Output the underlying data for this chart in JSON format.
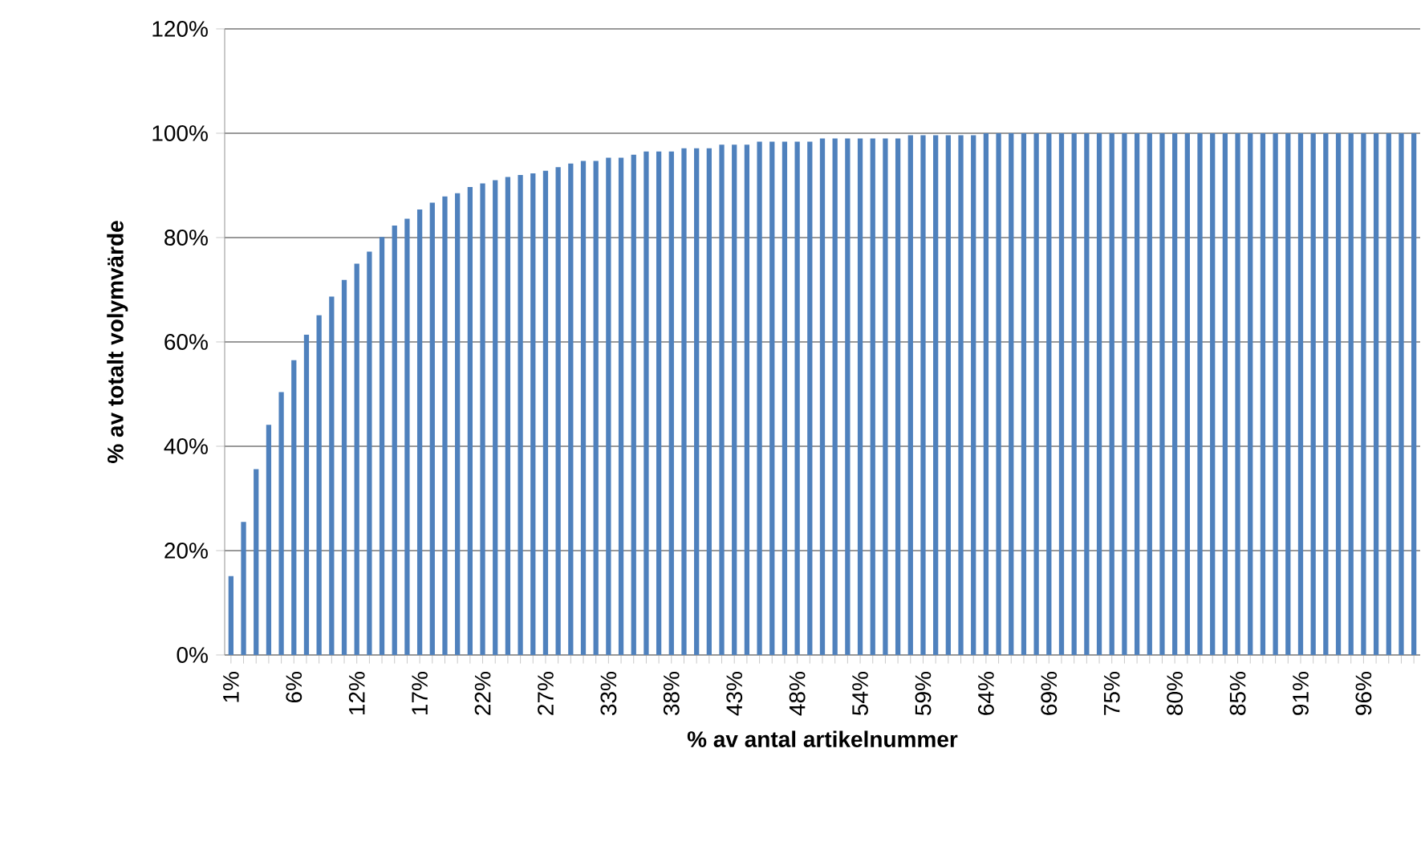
{
  "chart_data": {
    "type": "bar",
    "xlabel": "% av antal artikelnummer",
    "ylabel": "% av totalt volymvärde",
    "categories": [
      "1%",
      null,
      null,
      null,
      null,
      "6%",
      null,
      null,
      null,
      null,
      "12%",
      null,
      null,
      null,
      null,
      "17%",
      null,
      null,
      null,
      null,
      "22%",
      null,
      null,
      null,
      null,
      "27%",
      null,
      null,
      null,
      null,
      "33%",
      null,
      null,
      null,
      null,
      "38%",
      null,
      null,
      null,
      null,
      "43%",
      null,
      null,
      null,
      null,
      "48%",
      null,
      null,
      null,
      null,
      "54%",
      null,
      null,
      null,
      null,
      "59%",
      null,
      null,
      null,
      null,
      "64%",
      null,
      null,
      null,
      null,
      "69%",
      null,
      null,
      null,
      null,
      "75%",
      null,
      null,
      null,
      null,
      "80%",
      null,
      null,
      null,
      null,
      "85%",
      null,
      null,
      null,
      null,
      "91%",
      null,
      null,
      null,
      null,
      "96%",
      null,
      null,
      null,
      null
    ],
    "values": [
      15.1,
      25.5,
      35.6,
      44.1,
      50.4,
      56.5,
      61.4,
      65.1,
      68.7,
      71.9,
      75.0,
      77.3,
      80.1,
      82.3,
      83.6,
      85.4,
      86.7,
      87.9,
      88.5,
      89.7,
      90.4,
      91.0,
      91.6,
      92.0,
      92.3,
      92.8,
      93.5,
      94.2,
      94.7,
      94.7,
      95.3,
      95.3,
      95.9,
      96.5,
      96.5,
      96.5,
      97.1,
      97.1,
      97.1,
      97.8,
      97.8,
      97.8,
      98.4,
      98.4,
      98.4,
      98.4,
      98.4,
      99.0,
      99.0,
      99.0,
      99.0,
      99.0,
      99.0,
      99.0,
      99.6,
      99.6,
      99.6,
      99.6,
      99.6,
      99.6,
      100,
      100,
      100,
      100,
      100,
      100,
      100,
      100,
      100,
      100,
      100,
      100,
      100,
      100,
      100,
      100,
      100,
      100,
      100,
      100,
      100,
      100,
      100,
      100,
      100,
      100,
      100,
      100,
      100,
      100,
      100,
      100,
      100,
      100,
      100
    ],
    "color": "#4f81bd",
    "ylim": [
      0,
      120
    ],
    "yticks": [
      {
        "value": 0,
        "label": "0%"
      },
      {
        "value": 20,
        "label": "20%"
      },
      {
        "value": 40,
        "label": "40%"
      },
      {
        "value": 60,
        "label": "60%"
      },
      {
        "value": 80,
        "label": "80%"
      },
      {
        "value": 100,
        "label": "100%"
      },
      {
        "value": 120,
        "label": "120%"
      }
    ],
    "grid": "y"
  }
}
